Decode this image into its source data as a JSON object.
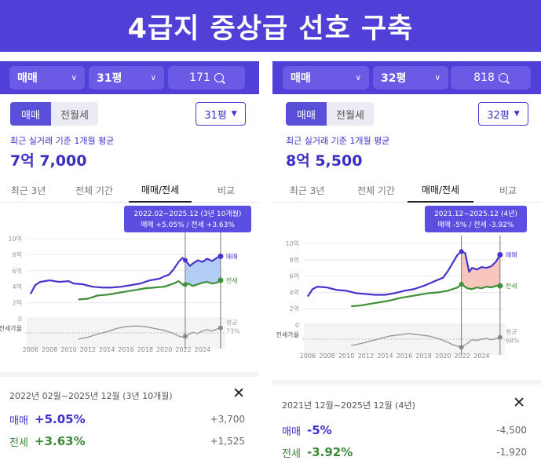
{
  "banner": {
    "title": "4급지 중상급 선호 구축"
  },
  "panels": [
    {
      "filters": {
        "deal": "매매",
        "size": "31평",
        "count": "171"
      },
      "segment": {
        "active": "매매",
        "inactive": "전월세"
      },
      "size_select": "31평",
      "recent_label": "최근 실거래 기준 1개월 평균",
      "price": "7억 7,000",
      "tabs": [
        "최근 3년",
        "전체 기간",
        "매매/전세",
        "비교"
      ],
      "active_tab": "매매/전세",
      "tooltip": {
        "range": "2022.02~2025.12 (3년 10개월)",
        "values": "매매 +5.05%  /  전세 +3.63%"
      },
      "end_labels": {
        "sale": "매매",
        "jeonse": "전세",
        "avg": "평균",
        "ratio": "73%"
      },
      "ratio_label": "전세가율",
      "detail": {
        "period": "2022년 02월~2025년 12월 (3년 10개월)",
        "rows": [
          {
            "name": "매매",
            "pct": "+5.05%",
            "amount": "+3,700"
          },
          {
            "name": "전세",
            "pct": "+3.63%",
            "amount": "+1,525"
          }
        ]
      },
      "chart_data": {
        "type": "line",
        "y_ticks": [
          "10억",
          "8억",
          "6억",
          "4억",
          "2억",
          "0"
        ],
        "ylim": [
          0,
          10
        ],
        "x_ticks": [
          "2006",
          "2008",
          "2010",
          "2012",
          "2014",
          "2016",
          "2018",
          "2020",
          "2022",
          "2024"
        ],
        "series": [
          {
            "name": "매매",
            "color": "#4433cc",
            "x": [
              2006.0,
              2006.5,
              2007.0,
              2008.0,
              2009.0,
              2010.0,
              2010.5,
              2011.5,
              2012.5,
              2013.5,
              2014.5,
              2015.5,
              2016.5,
              2017.5,
              2018.5,
              2019.5,
              2020.0,
              2020.5,
              2021.0,
              2021.5,
              2021.9,
              2022.2,
              2022.7,
              2023.0,
              2023.5,
              2024.0,
              2024.5,
              2025.0,
              2025.5,
              2025.9
            ],
            "y": [
              3.1,
              4.2,
              4.6,
              4.8,
              4.6,
              4.7,
              4.4,
              4.3,
              4.0,
              3.9,
              3.9,
              4.0,
              4.2,
              4.4,
              4.8,
              5.0,
              5.3,
              5.5,
              6.2,
              7.1,
              7.6,
              7.3,
              6.6,
              6.9,
              7.3,
              7.1,
              7.5,
              7.2,
              7.6,
              7.8
            ]
          },
          {
            "name": "전세",
            "color": "#3f8f36",
            "x": [
              2011.0,
              2012.0,
              2013.0,
              2014.0,
              2015.0,
              2016.0,
              2017.0,
              2018.0,
              2019.0,
              2020.0,
              2020.5,
              2021.0,
              2021.5,
              2022.0,
              2022.5,
              2023.0,
              2023.5,
              2024.0,
              2024.5,
              2025.0,
              2025.5,
              2025.9
            ],
            "y": [
              2.4,
              2.5,
              2.9,
              3.0,
              3.2,
              3.4,
              3.6,
              3.8,
              3.9,
              4.0,
              4.2,
              4.4,
              4.7,
              4.2,
              4.4,
              4.1,
              4.3,
              4.5,
              4.6,
              4.4,
              4.5,
              4.8
            ]
          }
        ],
        "ratio": {
          "x": [
            2011.0,
            2012.0,
            2013.0,
            2014.0,
            2015.0,
            2016.0,
            2017.0,
            2018.0,
            2019.0,
            2020.0,
            2021.0,
            2021.5,
            2022.0,
            2022.5,
            2023.0,
            2023.5,
            2024.0,
            2024.5,
            2025.0,
            2025.5,
            2025.9
          ],
          "y": [
            55,
            58,
            63,
            67,
            72,
            75,
            76,
            75,
            72,
            69,
            64,
            60,
            58,
            62,
            66,
            64,
            68,
            70,
            68,
            71,
            73
          ]
        },
        "highlight_range": [
          2022.2,
          2025.9
        ]
      }
    },
    {
      "filters": {
        "deal": "매매",
        "size": "32평",
        "count": "818"
      },
      "segment": {
        "active": "매매",
        "inactive": "전월세"
      },
      "size_select": "32평",
      "recent_label": "최근 실거래 기준 1개월 평균",
      "price": "8억 5,500",
      "tabs": [
        "최근 3년",
        "전체 기간",
        "매매/전세",
        "비교"
      ],
      "active_tab": "매매/전세",
      "tooltip": {
        "range": "2021.12~2025.12 (4년)",
        "values": "매매 -5%  /  전세 -3.92%"
      },
      "end_labels": {
        "sale": "매매",
        "jeonse": "전세",
        "avg": "평균",
        "ratio": "68%"
      },
      "ratio_label": "전세가율",
      "detail": {
        "period": "2021년 12월~2025년 12월 (4년)",
        "rows": [
          {
            "name": "매매",
            "pct": "-5%",
            "amount": "-4,500"
          },
          {
            "name": "전세",
            "pct": "-3.92%",
            "amount": "-1,920"
          }
        ]
      },
      "chart_data": {
        "type": "line",
        "y_ticks": [
          "10억",
          "8억",
          "6억",
          "4억",
          "2억",
          "0"
        ],
        "ylim": [
          0,
          10
        ],
        "x_ticks": [
          "2006",
          "2008",
          "2010",
          "2012",
          "2014",
          "2016",
          "2018",
          "2020",
          "2022",
          "2024"
        ],
        "series": [
          {
            "name": "매매",
            "color": "#4433cc",
            "x": [
              2006.0,
              2006.5,
              2007.0,
              2008.0,
              2009.0,
              2010.0,
              2011.0,
              2012.0,
              2013.0,
              2014.0,
              2015.0,
              2016.0,
              2017.0,
              2018.0,
              2019.0,
              2020.0,
              2020.5,
              2021.0,
              2021.5,
              2021.9,
              2022.3,
              2022.7,
              2023.0,
              2023.5,
              2024.0,
              2024.5,
              2025.0,
              2025.5,
              2025.9
            ],
            "y": [
              3.5,
              4.4,
              4.7,
              4.6,
              4.3,
              4.2,
              3.9,
              3.8,
              3.7,
              3.7,
              3.9,
              4.2,
              4.4,
              4.8,
              5.3,
              5.8,
              6.6,
              7.6,
              8.6,
              9.0,
              8.8,
              6.5,
              7.0,
              6.8,
              7.1,
              7.0,
              7.2,
              7.8,
              8.6
            ]
          },
          {
            "name": "전세",
            "color": "#3f8f36",
            "x": [
              2010.5,
              2011.5,
              2012.5,
              2013.5,
              2014.5,
              2015.5,
              2016.5,
              2017.5,
              2018.5,
              2019.5,
              2020.5,
              2021.0,
              2021.5,
              2021.9,
              2022.5,
              2023.0,
              2023.5,
              2024.0,
              2024.5,
              2025.0,
              2025.5,
              2025.9
            ],
            "y": [
              2.3,
              2.4,
              2.6,
              2.8,
              3.0,
              3.3,
              3.5,
              3.7,
              3.9,
              4.0,
              4.2,
              4.4,
              4.6,
              5.0,
              4.5,
              4.4,
              4.6,
              4.5,
              4.7,
              4.6,
              4.8,
              4.8
            ]
          }
        ],
        "ratio": {
          "x": [
            2010.5,
            2011.5,
            2012.5,
            2013.5,
            2014.5,
            2015.5,
            2016.5,
            2017.5,
            2018.5,
            2019.5,
            2020.5,
            2021.0,
            2021.5,
            2021.9,
            2022.5,
            2023.0,
            2023.5,
            2024.0,
            2024.5,
            2025.0,
            2025.5,
            2025.9
          ],
          "y": [
            55,
            58,
            62,
            66,
            70,
            72,
            74,
            72,
            70,
            66,
            60,
            56,
            54,
            52,
            58,
            64,
            63,
            65,
            66,
            64,
            66,
            68
          ]
        },
        "highlight_range": [
          2021.9,
          2025.9
        ]
      }
    }
  ]
}
